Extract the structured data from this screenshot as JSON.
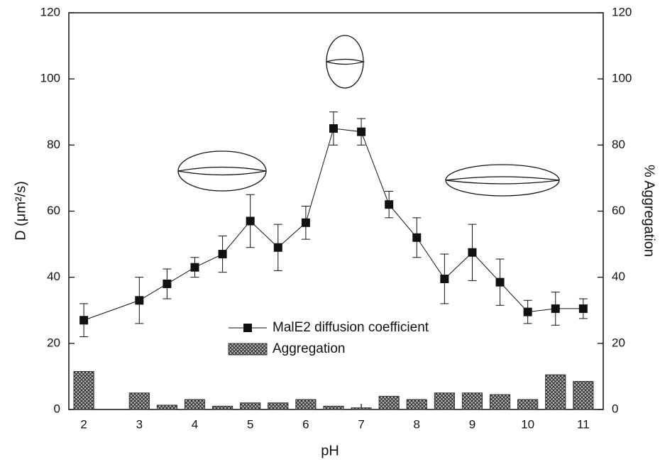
{
  "chart_data": {
    "type": "line",
    "x": [
      2,
      3,
      3.5,
      4,
      4.5,
      5,
      5.5,
      6,
      6.5,
      7,
      7.5,
      8,
      8.5,
      9,
      9.5,
      10,
      10.5,
      11
    ],
    "series": [
      {
        "name": "MalE2 diffusion coefficient",
        "type": "line",
        "color": "#111111",
        "values": [
          27,
          33,
          38,
          43,
          47,
          57,
          49,
          56.5,
          85,
          84,
          62,
          52,
          39.5,
          47.5,
          38.5,
          29.5,
          30.5,
          30.5
        ],
        "errors": [
          5,
          7,
          4.5,
          3,
          5.5,
          8,
          7,
          5,
          5,
          4,
          4,
          6,
          7.5,
          8.5,
          7,
          3.5,
          5,
          3
        ]
      },
      {
        "name": "Aggregation",
        "type": "bar",
        "axis": "y2",
        "color": "#333333",
        "values": [
          11.5,
          5,
          1.3,
          3,
          1,
          2,
          2,
          3,
          1,
          0.5,
          4,
          3,
          5,
          5,
          4.5,
          3,
          10.5,
          8.5
        ]
      }
    ],
    "xlabel": "pH",
    "ylabel": "D (μm²/s)",
    "y2label": "% Aggregation",
    "xlim": [
      1.73,
      11.36
    ],
    "xticks": [
      2,
      3,
      4,
      5,
      6,
      7,
      8,
      9,
      10,
      11
    ],
    "ylim": [
      0,
      120
    ],
    "yticks": [
      0,
      20,
      40,
      60,
      80,
      100,
      120
    ],
    "y2lim": [
      0,
      120
    ],
    "y2ticks": [
      0,
      20,
      40,
      60,
      80,
      100,
      120
    ],
    "legend": "center",
    "grid": false
  }
}
